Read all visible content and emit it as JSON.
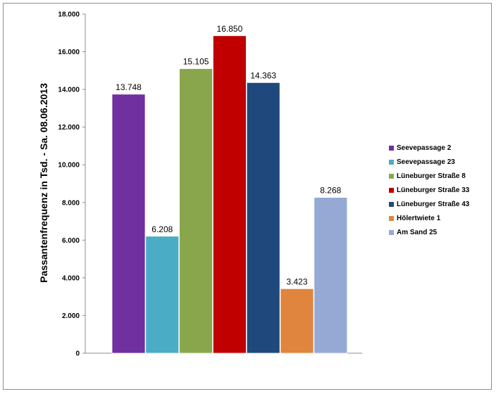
{
  "chart_data": {
    "type": "bar",
    "title": "",
    "xlabel": "",
    "ylabel": "Passantenfrequenz in Tsd. - Sa. 08.06.2013",
    "ylim": [
      0,
      18000
    ],
    "yticks": [
      "0",
      "2.000",
      "4.000",
      "6.000",
      "8.000",
      "10.000",
      "12.000",
      "14.000",
      "16.000",
      "18.000"
    ],
    "grid": false,
    "legend_position": "right",
    "series": [
      {
        "name": "Seevepassage 2",
        "value": 13748,
        "label": "13.748",
        "color": "#7030a0"
      },
      {
        "name": "Seevepassage 23",
        "value": 6208,
        "label": "6.208",
        "color": "#4bacc6"
      },
      {
        "name": "Lüneburger Straße 8",
        "value": 15105,
        "label": "15.105",
        "color": "#8aa64d"
      },
      {
        "name": "Lüneburger Straße 33",
        "value": 16850,
        "label": "16.850",
        "color": "#c00000"
      },
      {
        "name": "Lüneburger Straße 43",
        "value": 14363,
        "label": "14.363",
        "color": "#1f497d"
      },
      {
        "name": "Hölertwiete 1",
        "value": 3423,
        "label": "3.423",
        "color": "#e0853d"
      },
      {
        "name": "Am Sand 25",
        "value": 8268,
        "label": "8.268",
        "color": "#95a9d4"
      }
    ]
  }
}
